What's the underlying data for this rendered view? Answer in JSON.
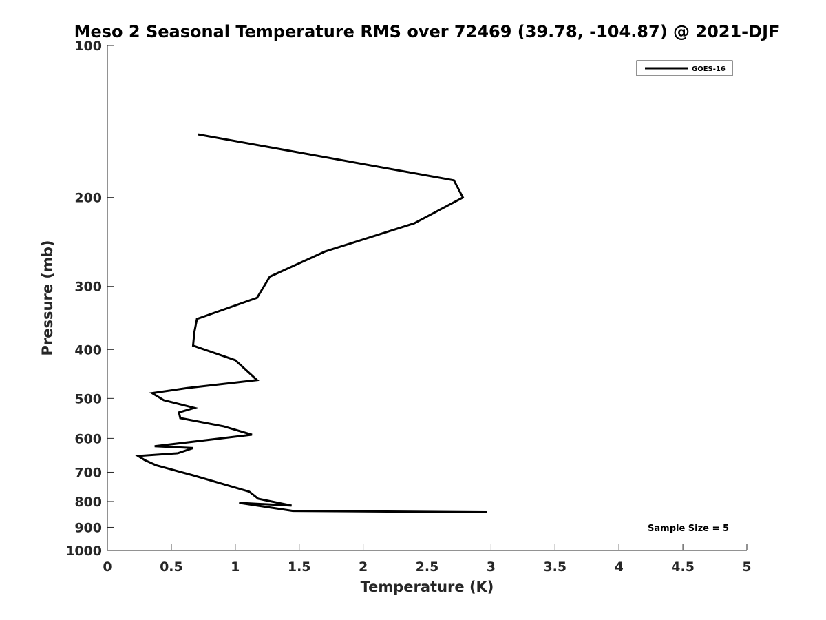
{
  "chart_data": {
    "type": "line",
    "title": "Meso 2 Seasonal Temperature RMS over 72469 (39.78, -104.87) @ 2021-DJF",
    "xlabel": "Temperature (K)",
    "ylabel": "Pressure (mb)",
    "xlim": [
      0,
      5
    ],
    "ylim": [
      100,
      1000
    ],
    "yscale": "log",
    "yreverse": true,
    "grid": false,
    "xticks": [
      0,
      0.5,
      1,
      1.5,
      2,
      2.5,
      3,
      3.5,
      4,
      4.5,
      5
    ],
    "xtick_labels": [
      "0",
      "0.5",
      "1",
      "1.5",
      "2",
      "2.5",
      "3",
      "3.5",
      "4",
      "4.5",
      "5"
    ],
    "yticks": [
      100,
      200,
      300,
      400,
      500,
      600,
      700,
      800,
      900,
      1000
    ],
    "ytick_labels": [
      "100",
      "200",
      "300",
      "400",
      "500",
      "600",
      "700",
      "800",
      "900",
      "1000"
    ],
    "legend": {
      "position": "top-right",
      "entries": [
        "GOES-16"
      ]
    },
    "annotation": "Sample Size = 5",
    "series": [
      {
        "name": "GOES-16",
        "color": "#000000",
        "x": [
          0.71,
          2.71,
          2.78,
          2.4,
          1.7,
          1.27,
          1.17,
          0.7,
          0.68,
          0.67,
          1.0,
          1.17,
          0.62,
          0.35,
          0.44,
          0.68,
          0.56,
          0.57,
          0.91,
          1.13,
          0.37,
          0.67,
          0.55,
          0.24,
          0.29,
          0.38,
          0.67,
          1.11,
          1.18,
          1.44,
          1.03,
          1.45,
          2.97
        ],
        "y": [
          150,
          185,
          200,
          225,
          256,
          287,
          316,
          348,
          370,
          393,
          420,
          460,
          477,
          488,
          504,
          522,
          533,
          547,
          568,
          590,
          622,
          627,
          642,
          650,
          662,
          678,
          710,
          765,
          790,
          815,
          805,
          835,
          840
        ]
      }
    ]
  }
}
